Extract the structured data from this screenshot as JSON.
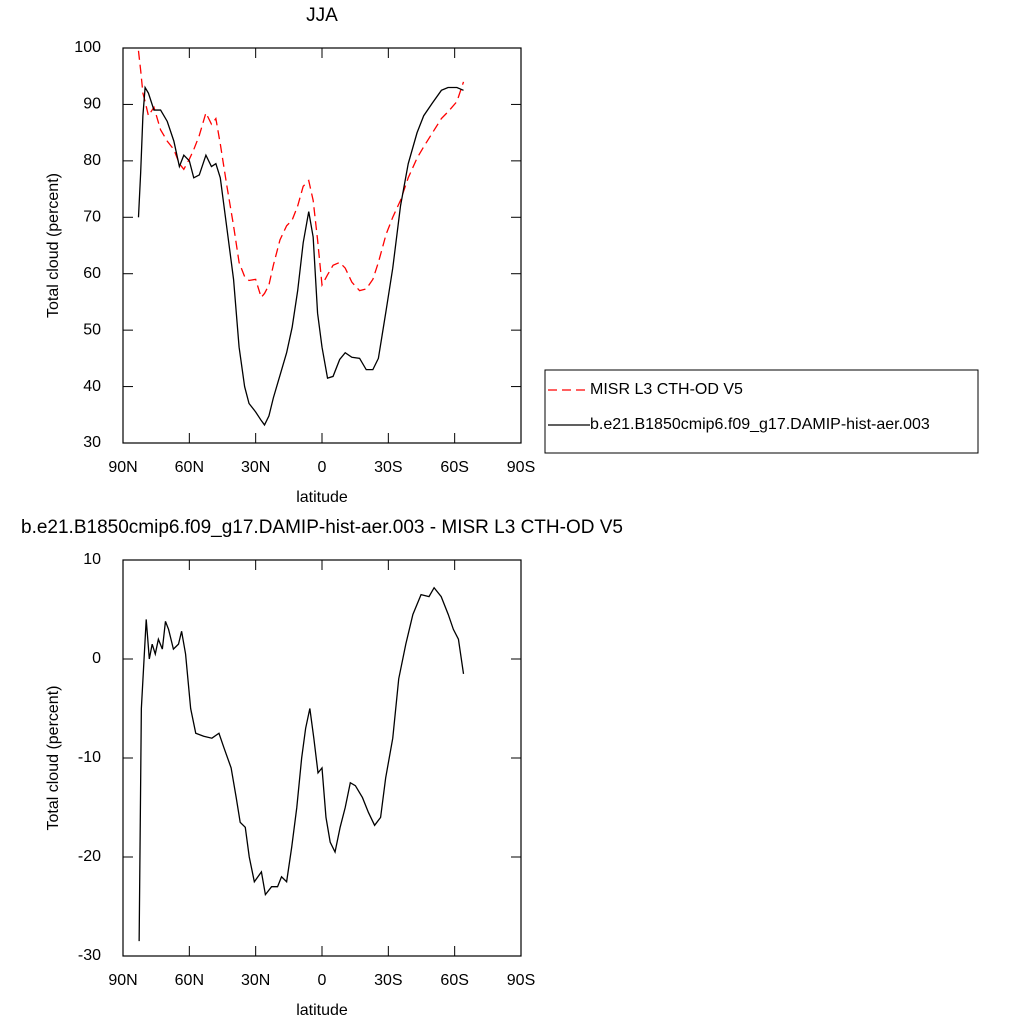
{
  "chart_data": [
    {
      "type": "line",
      "title": "JJA",
      "x_label": "latitude",
      "y_label": "Total cloud (percent)",
      "x": [
        83,
        82,
        81,
        80,
        78.5,
        76,
        73,
        70,
        67,
        64.5,
        62.5,
        60,
        58,
        55.5,
        52.5,
        50,
        48,
        46,
        43,
        40,
        37.5,
        35,
        33,
        30,
        27.5,
        26,
        24,
        22,
        19,
        16,
        13.5,
        11,
        8.5,
        6,
        4,
        2,
        0,
        -2.5,
        -5,
        -8,
        -10.5,
        -13.5,
        -17,
        -20,
        -23,
        -25.5,
        -29,
        -32,
        -35.5,
        -39,
        -43,
        -46,
        -50,
        -54,
        -57,
        -61,
        -64
      ],
      "series": [
        {
          "name": "MISR L3 CTH-OD V5",
          "color": "#ff0000",
          "style": "dashed",
          "values": [
            99.5,
            96,
            92,
            90.5,
            88,
            89.5,
            85.5,
            83.5,
            82,
            79.5,
            78.5,
            80.3,
            82,
            84.5,
            88.5,
            86.5,
            87.5,
            83,
            75.5,
            68.5,
            62,
            59.5,
            58.8,
            59,
            55.8,
            56.5,
            58,
            61.5,
            66,
            68.5,
            69.5,
            72,
            75.5,
            76.5,
            73,
            66,
            58,
            59.8,
            61.5,
            62,
            61,
            58.5,
            57,
            57.3,
            59,
            62,
            67,
            70,
            73,
            77,
            80.5,
            82.5,
            85,
            87.5,
            88.7,
            90.5,
            94
          ]
        },
        {
          "name": "b.e21.B1850cmip6.f09_g17.DAMIP-hist-aer.003",
          "color": "#000000",
          "style": "solid",
          "values": [
            70,
            78,
            88,
            93,
            92,
            89,
            89,
            87,
            83.5,
            79,
            81,
            80,
            77,
            77.5,
            81,
            79,
            79.5,
            77,
            68,
            59,
            47,
            40,
            37,
            35.5,
            34,
            33.2,
            34.8,
            38,
            42,
            46,
            50.5,
            57,
            65.5,
            71,
            66.5,
            53,
            47,
            41.5,
            41.8,
            44.8,
            46,
            45.2,
            45,
            43,
            43,
            45,
            53.5,
            61,
            72,
            79.5,
            85,
            88,
            90.3,
            92.5,
            93,
            93,
            92.5
          ]
        }
      ],
      "xlim": [
        90,
        -90
      ],
      "xticks": [
        {
          "value": 90,
          "label": "90N"
        },
        {
          "value": 60,
          "label": "60N"
        },
        {
          "value": 30,
          "label": "30N"
        },
        0,
        {
          "value": -30,
          "label": "30S"
        },
        {
          "value": -60,
          "label": "60S"
        },
        {
          "value": -90,
          "label": "90S"
        }
      ],
      "ylim": [
        30,
        100
      ],
      "yticks": [
        30,
        40,
        50,
        60,
        70,
        80,
        90,
        100
      ],
      "legend": "right"
    },
    {
      "type": "line",
      "title": "b.e21.B1850cmip6.f09_g17.DAMIP-hist-aer.003 - MISR L3 CTH-OD V5",
      "x_label": "latitude",
      "y_label": "Total cloud (percent)",
      "x": [
        82.7,
        81.7,
        79.5,
        78.1,
        76.8,
        75.4,
        74,
        72.2,
        70.8,
        69.4,
        67.2,
        64.9,
        63.5,
        61.7,
        59.4,
        57.1,
        53.5,
        49.8,
        46.6,
        44.3,
        41.1,
        38.8,
        37,
        34.7,
        32.9,
        30.6,
        27.4,
        25.6,
        22.8,
        20.1,
        18.3,
        16,
        13.7,
        11.4,
        9.2,
        7.4,
        5.5,
        3.7,
        1.8,
        0,
        -1.8,
        -3.7,
        -5.9,
        -8.2,
        -10.5,
        -12.8,
        -15.1,
        -18.3,
        -21,
        -23.8,
        -26.5,
        -28.8,
        -32,
        -34.7,
        -37.9,
        -41.1,
        -44.8,
        -48.4,
        -50.7,
        -53.9,
        -57.1,
        -59.4,
        -61.7,
        -64
      ],
      "values": [
        -28.5,
        -5,
        4,
        0,
        1.5,
        0.5,
        2,
        1,
        3.8,
        3,
        1,
        1.5,
        2.8,
        0.5,
        -5,
        -7.5,
        -7.8,
        -8,
        -7.5,
        -9,
        -11,
        -14,
        -16.5,
        -17,
        -20,
        -22.5,
        -21.5,
        -23.8,
        -23,
        -23,
        -22,
        -22.5,
        -19,
        -15,
        -10,
        -7,
        -5,
        -8,
        -11.5,
        -11,
        -16,
        -18.5,
        -19.5,
        -17,
        -15,
        -12.5,
        -12.8,
        -14,
        -15.5,
        -16.8,
        -16,
        -12,
        -8,
        -2,
        1.5,
        4.5,
        6.5,
        6.3,
        7.2,
        6.3,
        4.5,
        3,
        2,
        -1.5
      ],
      "color": "#000000",
      "xlim": [
        90,
        -90
      ],
      "xticks": [
        {
          "value": 90,
          "label": "90N"
        },
        {
          "value": 60,
          "label": "60N"
        },
        {
          "value": 30,
          "label": "30N"
        },
        0,
        {
          "value": -30,
          "label": "30S"
        },
        {
          "value": -60,
          "label": "60S"
        },
        {
          "value": -90,
          "label": "90S"
        }
      ],
      "ylim": [
        -30,
        10
      ],
      "yticks": [
        -30,
        -20,
        -10,
        0,
        10
      ]
    }
  ]
}
